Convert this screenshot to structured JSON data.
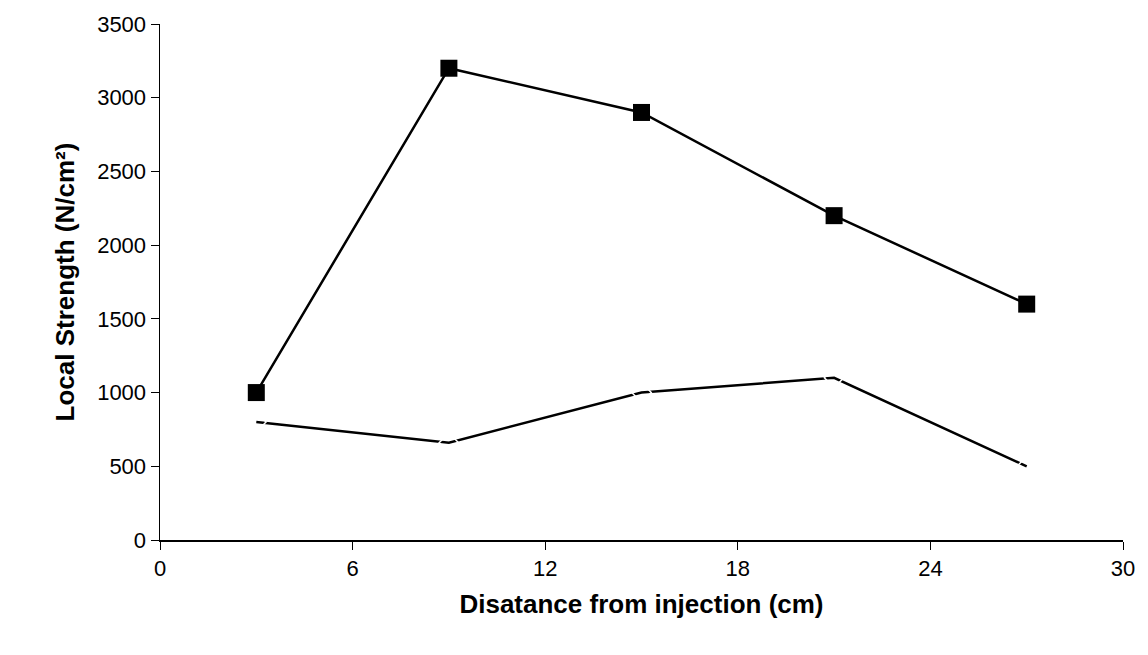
{
  "chart_data": {
    "type": "line",
    "x_label": "Disatance from injection (cm)",
    "y_label": "Local Strength (N/cm²)",
    "x": [
      3,
      9,
      15,
      21,
      27
    ],
    "series": [
      {
        "color": "#000000",
        "marker": "square",
        "line_style": "solid",
        "values": [
          1000,
          3200,
          2900,
          2200,
          1600
        ]
      },
      {
        "color": "#000000",
        "marker": "diamond-open",
        "line_style": "solid",
        "values": [
          800,
          660,
          1000,
          1100,
          500
        ]
      }
    ],
    "xlim": [
      0,
      30
    ],
    "xticks": [
      0,
      6,
      12,
      18,
      24,
      30
    ],
    "ylim": [
      0,
      3500
    ],
    "yticks": [
      0,
      500,
      1000,
      1500,
      2000,
      2500,
      3000,
      3500
    ],
    "grid": false
  }
}
